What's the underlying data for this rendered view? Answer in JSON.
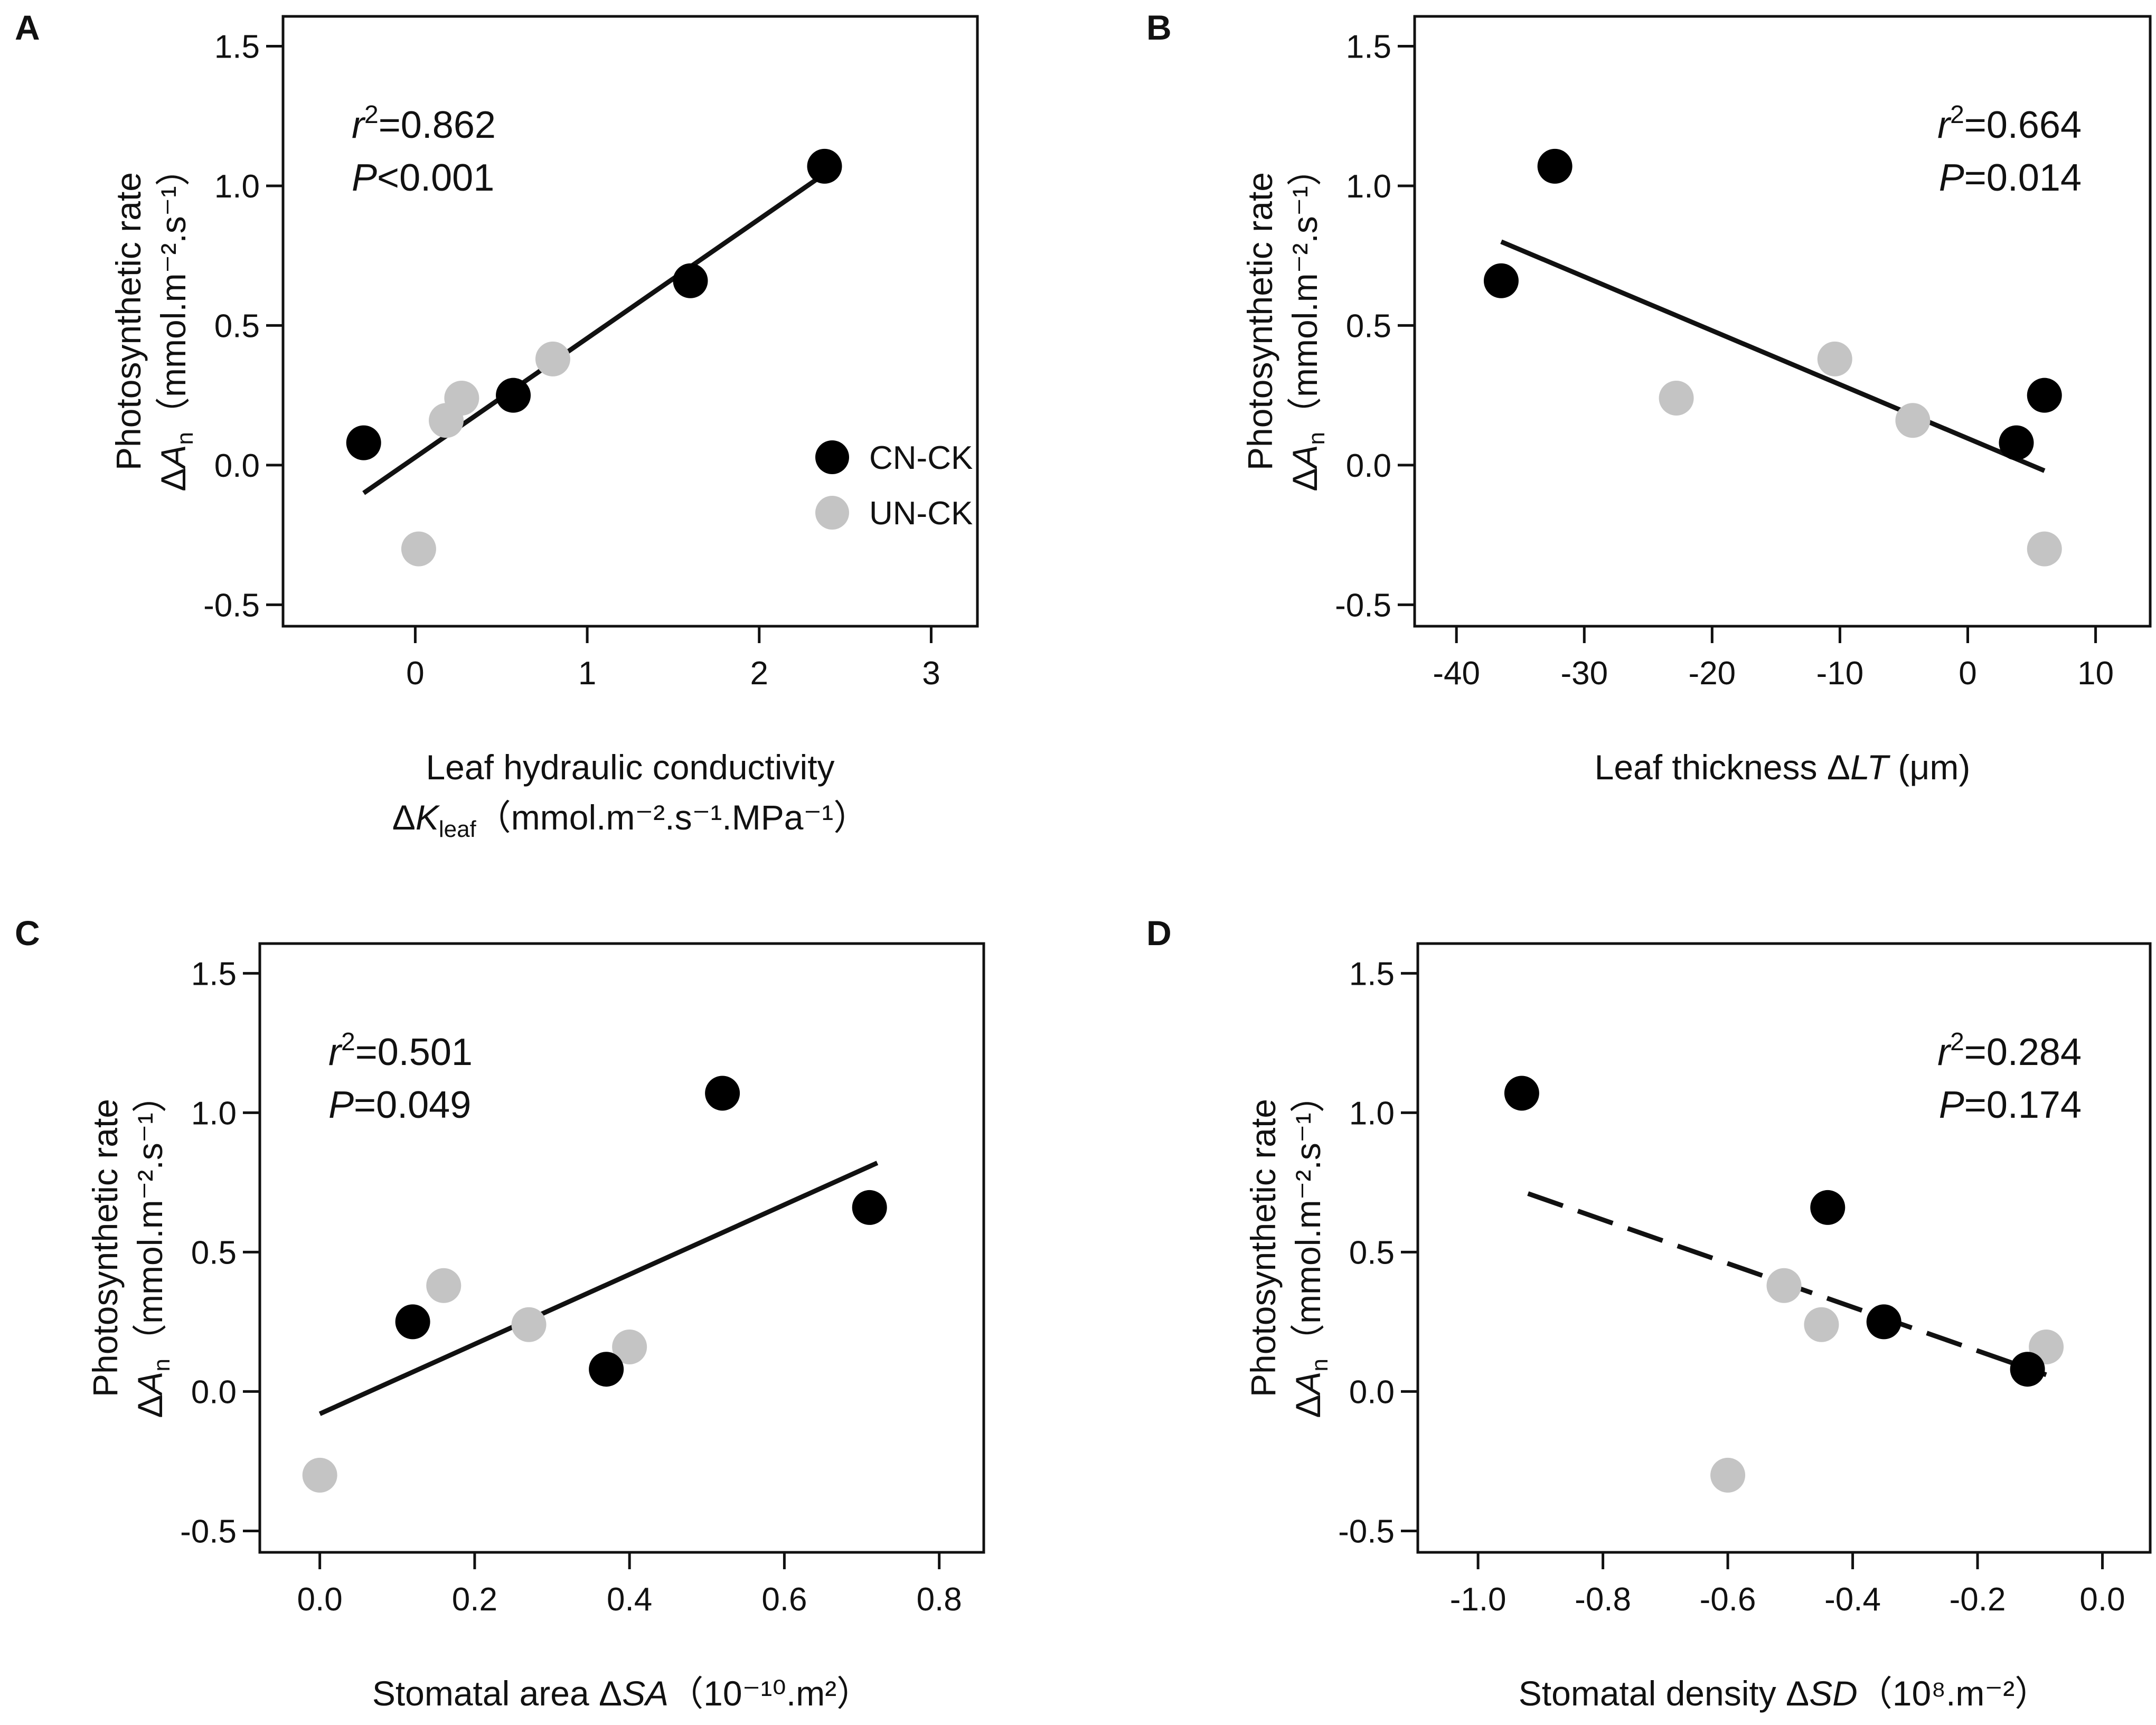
{
  "colors": {
    "cn_ck": "#000000",
    "un_ck": "#c4c4c4",
    "axis": "#111111",
    "background": "#ffffff"
  },
  "legend": {
    "cn_ck": "CN-CK",
    "un_ck": "UN-CK"
  },
  "chart_data": [
    {
      "panel": "A",
      "type": "scatter",
      "ylabel_line1": "Photosynthetic rate",
      "ylabel_delta": "Δ",
      "ylabel_var": "A",
      "ylabel_sub": "n",
      "ylabel_units": "（mmol.m⁻².s⁻¹）",
      "xlabel_line1": "Leaf hydraulic conductivity",
      "xlabel_delta": "Δ",
      "xlabel_var": "K",
      "xlabel_sub": "leaf",
      "xlabel_units": "（mmol.m⁻².s⁻¹.MPa⁻¹）",
      "stat_r_symbol": "r",
      "stat_r_sup": "2",
      "stat_r_text": "=0.862",
      "stat_p_symbol": "P",
      "stat_p_text": "<0.001",
      "stats_pos": "top-left",
      "show_legend": true,
      "xlim": [
        -0.6,
        3.1
      ],
      "ylim": [
        -0.52,
        1.55
      ],
      "xticks": [
        0,
        1,
        2,
        3
      ],
      "xtick_labels": [
        "0",
        "1",
        "2",
        "3"
      ],
      "yticks": [
        -0.5,
        0.0,
        0.5,
        1.0,
        1.5
      ],
      "ytick_labels": [
        "-0.5",
        "0.0",
        "0.5",
        "1.0",
        "1.5"
      ],
      "series": [
        {
          "name": "CN-CK",
          "x": [
            -0.3,
            0.57,
            1.6,
            2.38
          ],
          "y": [
            0.08,
            0.25,
            0.66,
            1.07
          ]
        },
        {
          "name": "UN-CK",
          "x": [
            0.02,
            0.18,
            0.27,
            0.8
          ],
          "y": [
            -0.3,
            0.16,
            0.24,
            0.38
          ]
        }
      ],
      "fit": {
        "x": [
          -0.3,
          2.35
        ],
        "y": [
          -0.1,
          1.03
        ],
        "style": "solid"
      }
    },
    {
      "panel": "B",
      "type": "scatter",
      "ylabel_line1": "Photosynthetic rate",
      "ylabel_delta": "Δ",
      "ylabel_var": "A",
      "ylabel_sub": "n",
      "ylabel_units": "（mmol.m⁻².s⁻¹）",
      "xlabel_line1": "",
      "xlabel_delta": "Δ",
      "xlabel_var": "LT",
      "xlabel_sub": "",
      "xlabel_prefix": "Leaf thickness ",
      "xlabel_units": " (μm)",
      "stat_r_symbol": "r",
      "stat_r_sup": "2",
      "stat_r_text": "=0.664",
      "stat_p_symbol": "P",
      "stat_p_text": "=0.014",
      "stats_pos": "top-right",
      "show_legend": false,
      "xlim": [
        -41,
        12
      ],
      "ylim": [
        -0.52,
        1.55
      ],
      "xticks": [
        -40,
        -30,
        -20,
        -10,
        0,
        10
      ],
      "xtick_labels": [
        "-40",
        "-30",
        "-20",
        "-10",
        "0",
        "10"
      ],
      "yticks": [
        -0.5,
        0.0,
        0.5,
        1.0,
        1.5
      ],
      "ytick_labels": [
        "-0.5",
        "0.0",
        "0.5",
        "1.0",
        "1.5"
      ],
      "series": [
        {
          "name": "CN-CK",
          "x": [
            -36.5,
            -32.3,
            3.8,
            6.0
          ],
          "y": [
            0.66,
            1.07,
            0.08,
            0.25
          ]
        },
        {
          "name": "UN-CK",
          "x": [
            -22.8,
            -10.4,
            -4.3,
            6.0
          ],
          "y": [
            0.24,
            0.38,
            0.16,
            -0.3
          ]
        }
      ],
      "fit": {
        "x": [
          -36.5,
          6.0
        ],
        "y": [
          0.8,
          -0.02
        ],
        "style": "solid"
      }
    },
    {
      "panel": "C",
      "type": "scatter",
      "ylabel_line1": "Photosynthetic rate",
      "ylabel_delta": "Δ",
      "ylabel_var": "A",
      "ylabel_sub": "n",
      "ylabel_units": "（mmol.m⁻².s⁻¹）",
      "xlabel_line1": "",
      "xlabel_delta": "Δ",
      "xlabel_var": "SA",
      "xlabel_sub": "",
      "xlabel_prefix": "Stomatal area ",
      "xlabel_units": "（10⁻¹⁰.m²）",
      "stat_r_symbol": "r",
      "stat_r_sup": "2",
      "stat_r_text": "=0.501",
      "stat_p_symbol": "P",
      "stat_p_text": "=0.049",
      "stats_pos": "top-left",
      "show_legend": false,
      "xlim": [
        -0.04,
        0.82
      ],
      "ylim": [
        -0.52,
        1.55
      ],
      "xticks": [
        0.0,
        0.2,
        0.4,
        0.6,
        0.8
      ],
      "xtick_labels": [
        "0.0",
        "0.2",
        "0.4",
        "0.6",
        "0.8"
      ],
      "yticks": [
        -0.5,
        0.0,
        0.5,
        1.0,
        1.5
      ],
      "ytick_labels": [
        "-0.5",
        "0.0",
        "0.5",
        "1.0",
        "1.5"
      ],
      "series": [
        {
          "name": "CN-CK",
          "x": [
            0.12,
            0.37,
            0.52,
            0.71
          ],
          "y": [
            0.25,
            0.08,
            1.07,
            0.66
          ]
        },
        {
          "name": "UN-CK",
          "x": [
            0.0,
            0.16,
            0.27,
            0.4
          ],
          "y": [
            -0.3,
            0.38,
            0.24,
            0.16
          ]
        }
      ],
      "fit": {
        "x": [
          0.0,
          0.72
        ],
        "y": [
          -0.08,
          0.82
        ],
        "style": "solid"
      }
    },
    {
      "panel": "D",
      "type": "scatter",
      "ylabel_line1": "Photosynthetic rate",
      "ylabel_delta": "Δ",
      "ylabel_var": "A",
      "ylabel_sub": "n",
      "ylabel_units": "（mmol.m⁻².s⁻¹）",
      "xlabel_line1": "",
      "xlabel_delta": "Δ",
      "xlabel_var": "SD",
      "xlabel_sub": "",
      "xlabel_prefix": "Stomatal density ",
      "xlabel_units": "（10⁸.m⁻²）",
      "stat_r_symbol": "r",
      "stat_r_sup": "2",
      "stat_r_text": "=0.284",
      "stat_p_symbol": "P",
      "stat_p_text": "=0.174",
      "stats_pos": "top-right",
      "show_legend": false,
      "xlim": [
        -1.05,
        0.03
      ],
      "ylim": [
        -0.52,
        1.55
      ],
      "xticks": [
        -1.0,
        -0.8,
        -0.6,
        -0.4,
        -0.2,
        0.0
      ],
      "xtick_labels": [
        "-1.0",
        "-0.8",
        "-0.6",
        "-0.4",
        "-0.2",
        "0.0"
      ],
      "yticks": [
        -0.5,
        0.0,
        0.5,
        1.0,
        1.5
      ],
      "ytick_labels": [
        "-0.5",
        "0.0",
        "0.5",
        "1.0",
        "1.5"
      ],
      "series": [
        {
          "name": "CN-CK",
          "x": [
            -0.93,
            -0.44,
            -0.35,
            -0.12
          ],
          "y": [
            1.07,
            0.66,
            0.25,
            0.08
          ]
        },
        {
          "name": "UN-CK",
          "x": [
            -0.6,
            -0.51,
            -0.45,
            -0.09
          ],
          "y": [
            -0.3,
            0.38,
            0.24,
            0.16
          ]
        }
      ],
      "fit": {
        "x": [
          -0.92,
          -0.09
        ],
        "y": [
          0.71,
          0.06
        ],
        "style": "dashed"
      }
    }
  ]
}
